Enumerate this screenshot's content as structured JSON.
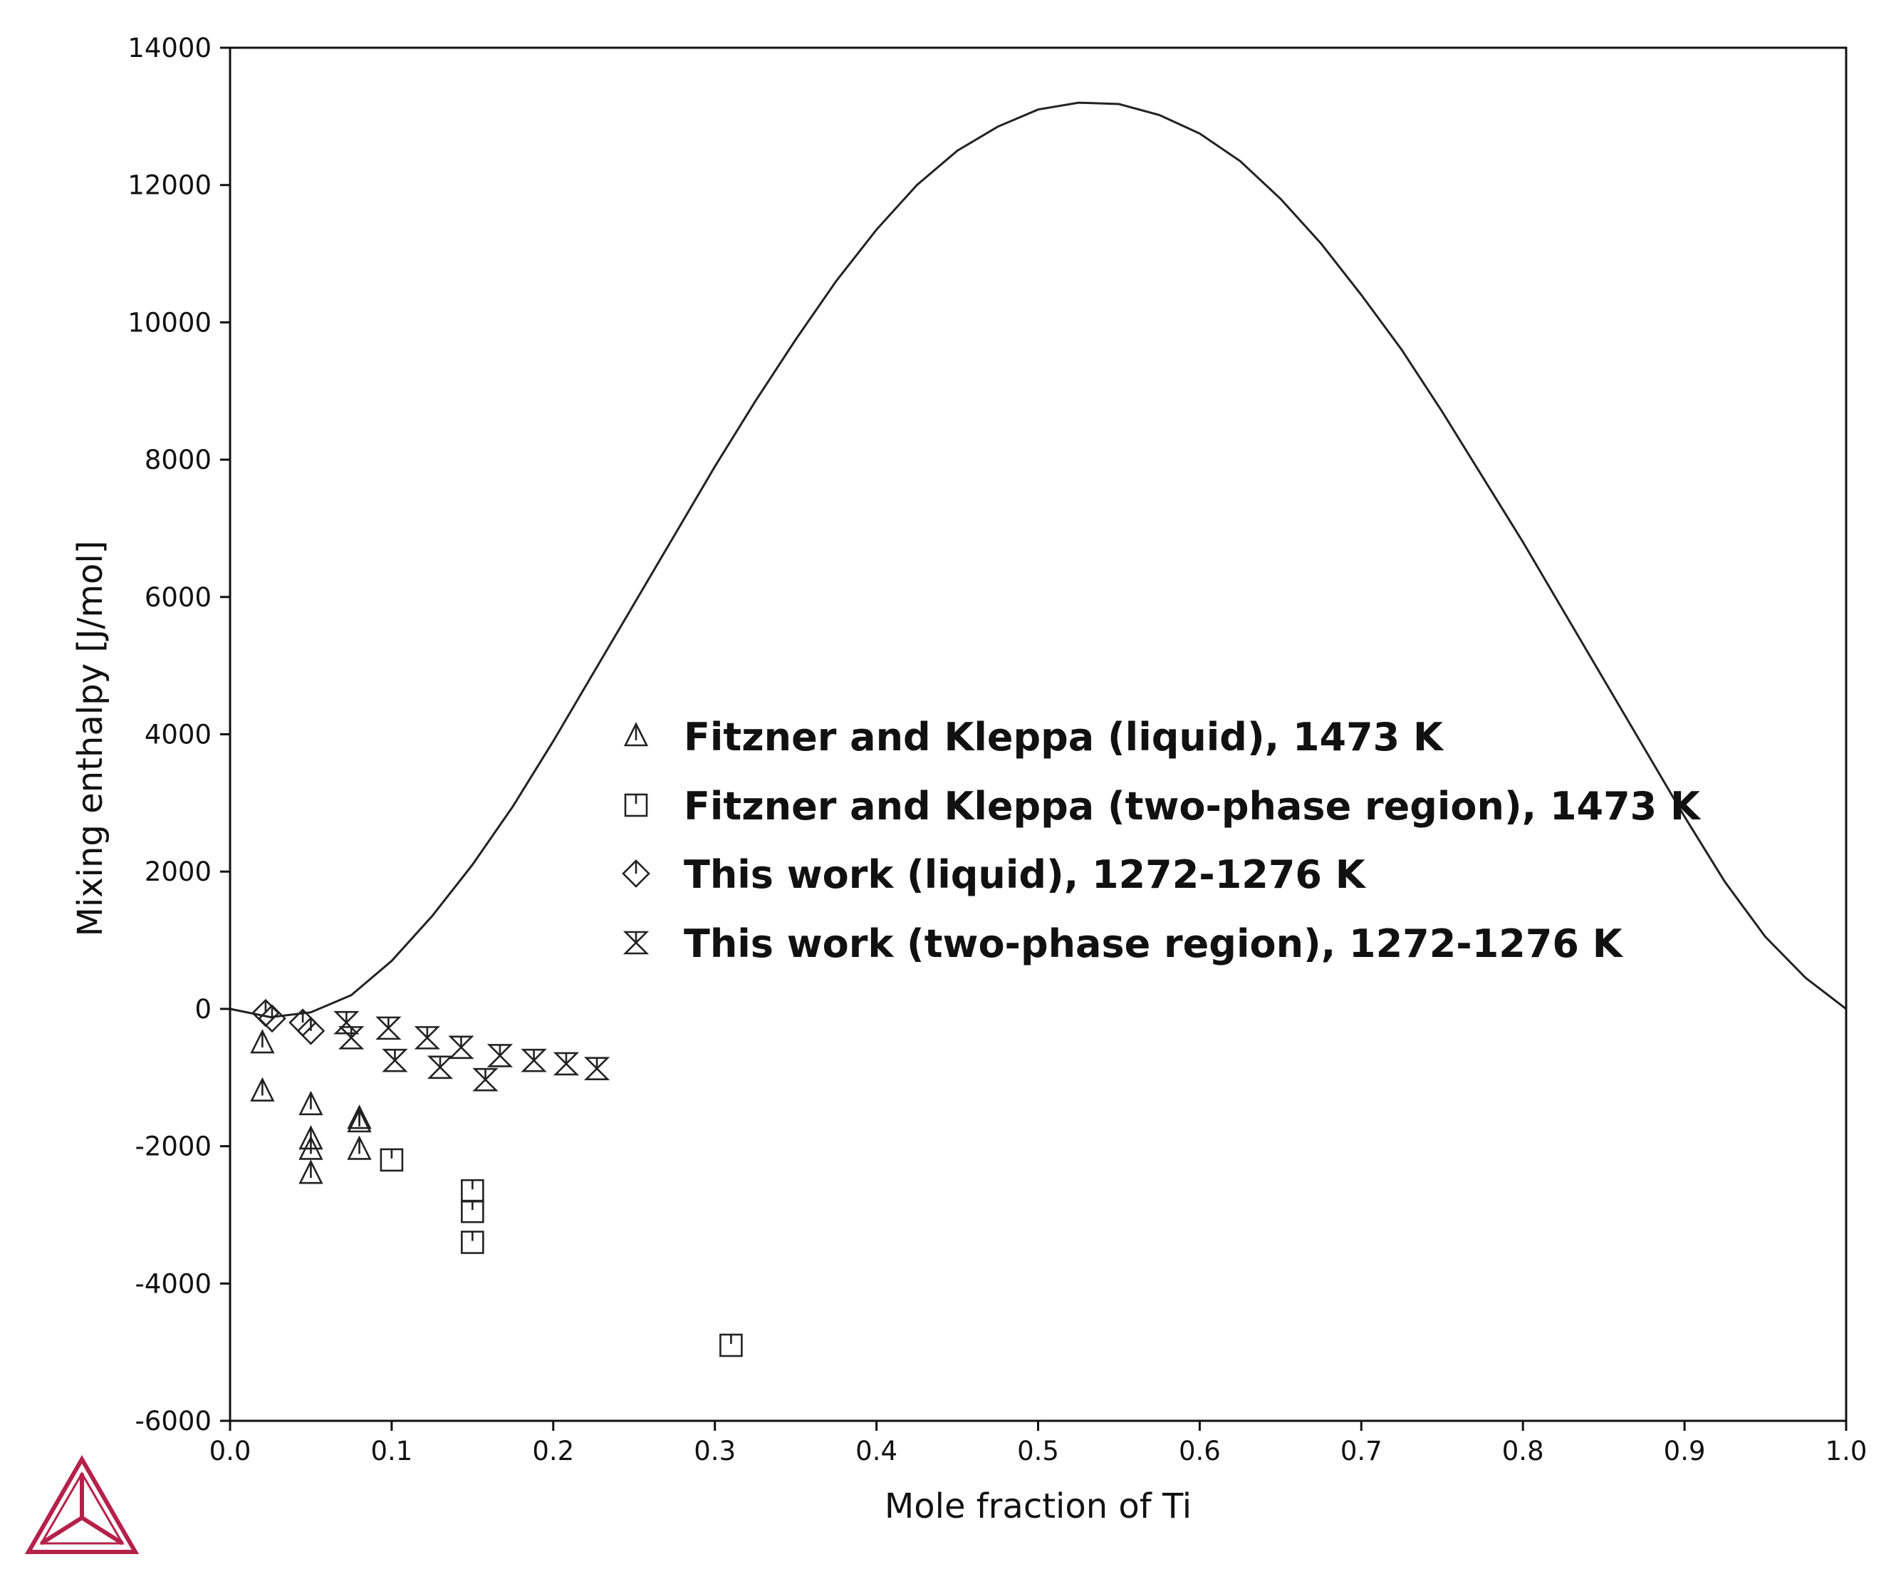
{
  "chart_data": {
    "type": "scatter",
    "title": "",
    "xlabel": "Mole fraction of Ti",
    "ylabel": "Mixing enthalpy [J/mol]",
    "xlim": [
      0.0,
      1.0
    ],
    "ylim": [
      -6000,
      14000
    ],
    "x_ticks": [
      0.0,
      0.1,
      0.2,
      0.3,
      0.4,
      0.5,
      0.6,
      0.7,
      0.8,
      0.9,
      1.0
    ],
    "x_tick_labels": [
      "0.0",
      "0.1",
      "0.2",
      "0.3",
      "0.4",
      "0.5",
      "0.6",
      "0.7",
      "0.8",
      "0.9",
      "1.0"
    ],
    "y_ticks": [
      -6000,
      -4000,
      -2000,
      0,
      2000,
      4000,
      6000,
      8000,
      10000,
      12000,
      14000
    ],
    "y_tick_labels": [
      "-6000",
      "-4000",
      "-2000",
      "0",
      "2000",
      "4000",
      "6000",
      "8000",
      "10000",
      "12000",
      "14000"
    ],
    "grid": false,
    "legend_position": "center",
    "curve": {
      "x": [
        0.0,
        0.025,
        0.05,
        0.075,
        0.1,
        0.125,
        0.15,
        0.175,
        0.2,
        0.225,
        0.25,
        0.275,
        0.3,
        0.325,
        0.35,
        0.375,
        0.4,
        0.425,
        0.45,
        0.475,
        0.5,
        0.525,
        0.55,
        0.575,
        0.6,
        0.625,
        0.65,
        0.675,
        0.7,
        0.725,
        0.75,
        0.775,
        0.8,
        0.825,
        0.85,
        0.875,
        0.9,
        0.925,
        0.95,
        0.975,
        1.0
      ],
      "y": [
        0,
        -120,
        -50,
        200,
        700,
        1350,
        2100,
        2950,
        3900,
        4900,
        5900,
        6900,
        7900,
        8850,
        9750,
        10600,
        11350,
        12000,
        12500,
        12850,
        13100,
        13200,
        13180,
        13020,
        12750,
        12350,
        11800,
        11150,
        10400,
        9600,
        8700,
        7750,
        6800,
        5800,
        4800,
        3800,
        2800,
        1850,
        1050,
        450,
        0
      ]
    },
    "series": [
      {
        "name": "Fitzner and Kleppa (liquid), 1473 K",
        "marker": "triangle",
        "points": [
          [
            0.02,
            -500
          ],
          [
            0.02,
            -1200
          ],
          [
            0.05,
            -1400
          ],
          [
            0.05,
            -1900
          ],
          [
            0.05,
            -2050
          ],
          [
            0.05,
            -2400
          ],
          [
            0.08,
            -1600
          ],
          [
            0.08,
            -1650
          ],
          [
            0.08,
            -2050
          ]
        ]
      },
      {
        "name": "Fitzner and Kleppa (two-phase region), 1473 K",
        "marker": "square",
        "points": [
          [
            0.1,
            -2200
          ],
          [
            0.15,
            -2650
          ],
          [
            0.15,
            -2950
          ],
          [
            0.15,
            -3400
          ],
          [
            0.31,
            -4900
          ]
        ]
      },
      {
        "name": "This work (liquid), 1272-1276 K",
        "marker": "diamond",
        "points": [
          [
            0.022,
            -60
          ],
          [
            0.026,
            -140
          ],
          [
            0.045,
            -200
          ],
          [
            0.05,
            -320
          ]
        ]
      },
      {
        "name": "This work (two-phase region), 1272-1276 K",
        "marker": "hourglass",
        "points": [
          [
            0.072,
            -200
          ],
          [
            0.075,
            -420
          ],
          [
            0.098,
            -280
          ],
          [
            0.102,
            -750
          ],
          [
            0.122,
            -420
          ],
          [
            0.13,
            -850
          ],
          [
            0.143,
            -560
          ],
          [
            0.158,
            -1030
          ],
          [
            0.167,
            -680
          ],
          [
            0.188,
            -750
          ],
          [
            0.208,
            -800
          ],
          [
            0.227,
            -870
          ]
        ]
      }
    ]
  },
  "logo": {
    "icon": "thermo-calc-triangle-logo",
    "color": "#b5214a"
  }
}
